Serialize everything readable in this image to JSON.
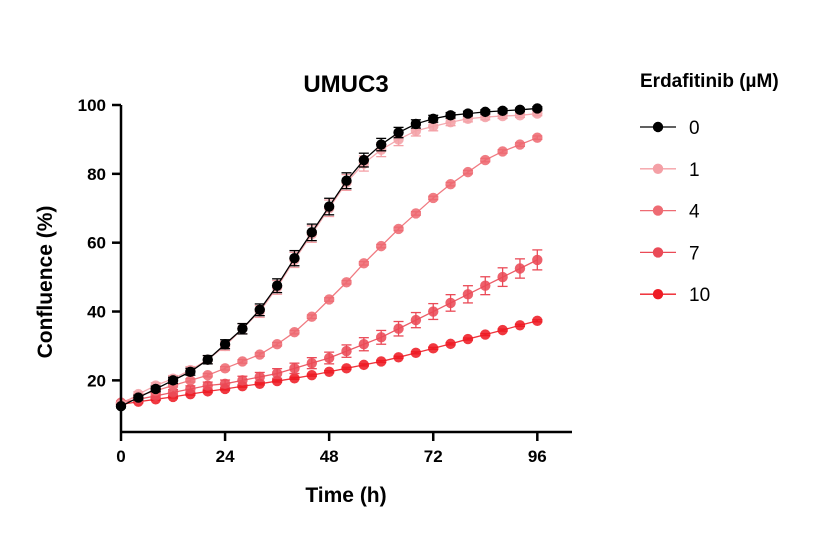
{
  "chart_data": {
    "type": "line",
    "title": "UMUC3",
    "xlabel": "Time (h)",
    "ylabel": "Confluence (%)",
    "xlim": [
      0,
      104
    ],
    "ylim": [
      5,
      100
    ],
    "xticks": [
      0,
      24,
      48,
      72,
      96
    ],
    "yticks": [
      20,
      40,
      60,
      80,
      100
    ],
    "grid": false,
    "legend_title": "Erdafitinib (µM)",
    "legend_position": "right",
    "x": [
      0,
      4,
      8,
      12,
      16,
      20,
      24,
      28,
      32,
      36,
      40,
      44,
      48,
      52,
      56,
      60,
      64,
      68,
      72,
      76,
      80,
      84,
      88,
      92,
      96
    ],
    "series": [
      {
        "name": "0",
        "color": "#000000",
        "values": [
          12.5,
          15.0,
          17.5,
          20.0,
          22.5,
          26.0,
          30.5,
          35.0,
          40.5,
          47.5,
          55.5,
          63.0,
          70.5,
          78.0,
          84.0,
          88.5,
          92.0,
          94.5,
          96.0,
          97.0,
          97.5,
          98.0,
          98.3,
          98.6,
          99.0
        ],
        "errors": [
          0.5,
          0.7,
          0.8,
          0.9,
          1.0,
          1.2,
          1.3,
          1.5,
          1.7,
          2.0,
          2.2,
          2.4,
          2.4,
          2.3,
          2.0,
          1.8,
          1.5,
          1.2,
          1.0,
          0.8,
          0.7,
          0.6,
          0.6,
          0.5,
          0.5
        ]
      },
      {
        "name": "1",
        "color": "#f4a0a6",
        "values": [
          13.0,
          16.0,
          18.5,
          20.5,
          23.0,
          26.0,
          30.0,
          35.0,
          40.0,
          47.0,
          55.0,
          62.5,
          70.0,
          77.5,
          83.0,
          87.0,
          90.0,
          92.5,
          93.8,
          95.0,
          96.0,
          96.5,
          96.8,
          97.0,
          97.5
        ],
        "errors": [
          0.5,
          0.7,
          0.8,
          0.9,
          1.0,
          1.2,
          1.3,
          1.5,
          1.7,
          2.0,
          2.2,
          2.4,
          2.4,
          2.3,
          2.2,
          2.0,
          1.8,
          1.5,
          1.3,
          1.0,
          0.9,
          0.8,
          0.7,
          0.6,
          0.6
        ]
      },
      {
        "name": "4",
        "color": "#ee6b73",
        "values": [
          13.5,
          15.5,
          17.0,
          18.5,
          20.0,
          21.5,
          23.5,
          25.5,
          27.5,
          30.5,
          34.0,
          38.5,
          43.5,
          48.5,
          54.0,
          59.0,
          64.0,
          68.5,
          73.0,
          77.0,
          80.5,
          84.0,
          86.5,
          88.5,
          90.5
        ],
        "errors": [
          0.3,
          0.4,
          0.4,
          0.4,
          0.5,
          0.5,
          0.5,
          0.5,
          0.5,
          0.5,
          0.5,
          0.5,
          0.5,
          0.5,
          0.5,
          0.5,
          0.5,
          0.5,
          0.5,
          0.5,
          0.5,
          0.5,
          0.5,
          0.5,
          0.5
        ]
      },
      {
        "name": "7",
        "color": "#ea4a57",
        "values": [
          13.5,
          14.5,
          15.5,
          16.5,
          17.5,
          18.5,
          19.0,
          20.0,
          21.0,
          22.0,
          23.5,
          25.0,
          26.5,
          28.5,
          30.5,
          32.5,
          35.0,
          37.5,
          40.0,
          42.5,
          45.0,
          47.5,
          50.0,
          52.5,
          55.0
        ],
        "errors": [
          0.5,
          0.6,
          0.7,
          0.8,
          0.9,
          1.0,
          1.1,
          1.2,
          1.3,
          1.4,
          1.5,
          1.6,
          1.7,
          1.8,
          1.9,
          2.0,
          2.1,
          2.2,
          2.3,
          2.4,
          2.5,
          2.6,
          2.7,
          2.8,
          2.9
        ]
      },
      {
        "name": "10",
        "color": "#ee1c25",
        "values": [
          13.0,
          13.8,
          14.5,
          15.2,
          16.0,
          16.8,
          17.5,
          18.3,
          19.0,
          19.8,
          20.6,
          21.5,
          22.5,
          23.5,
          24.5,
          25.5,
          26.7,
          28.0,
          29.3,
          30.6,
          32.0,
          33.3,
          34.6,
          36.0,
          37.3
        ],
        "errors": [
          0.3,
          0.3,
          0.3,
          0.3,
          0.3,
          0.3,
          0.3,
          0.3,
          0.3,
          0.3,
          0.3,
          0.3,
          0.3,
          0.3,
          0.3,
          0.3,
          0.3,
          0.3,
          0.3,
          0.3,
          0.3,
          0.3,
          0.3,
          0.3,
          0.3
        ]
      }
    ]
  }
}
